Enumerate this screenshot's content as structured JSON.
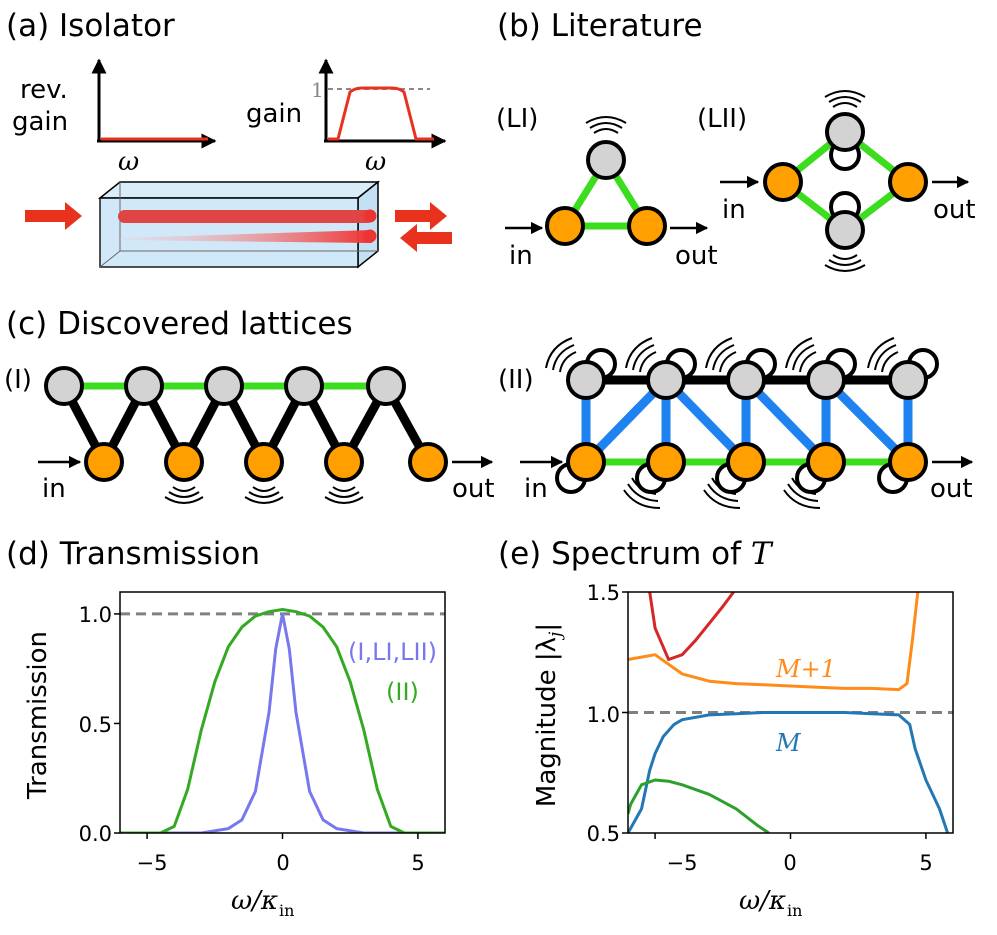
{
  "panels": {
    "a": {
      "title": "(a) Isolator",
      "rev_gain_label_1": "rev.",
      "rev_gain_label_2": "gain",
      "gain_label": "gain",
      "omega": "ω",
      "one": "1"
    },
    "b": {
      "title": "(b) Literature",
      "LI": "(LI)",
      "LII": "(LII)",
      "in": "in",
      "out": "out"
    },
    "c": {
      "title": "(c) Discovered lattices",
      "I": "(I)",
      "II": "(II)",
      "in": "in",
      "out": "out"
    },
    "d": {
      "title": "(d) Transmission",
      "ylabel": "Transmission",
      "xlabel_main": "ω/κ",
      "xlabel_sub": "in",
      "legend_1": "(I,LI,LII)",
      "legend_2": "(II)",
      "xticks": [
        "−5",
        "0",
        "5"
      ],
      "yticks": [
        "0.0",
        "0.5",
        "1.0"
      ]
    },
    "e": {
      "title_prefix": "(e) Spectrum of ",
      "title_T": "T",
      "ylabel": "Magnitude |λ",
      "ylabel_sub": "j",
      "ylabel_end": "|",
      "xlabel_main": "ω/κ",
      "xlabel_sub": "in",
      "label_M1": "M+1",
      "label_M": "M",
      "xticks": [
        "−5",
        "0",
        "5"
      ],
      "yticks": [
        "0.5",
        "1.0",
        "1.5"
      ]
    }
  },
  "colors": {
    "orange_node": "#ffa000",
    "grey_node": "#d3d3d3",
    "green_link": "#3cdc1e",
    "blue_link": "#1e82f0",
    "red": "#e8321e",
    "purple_curve": "#7777ee",
    "green_curve": "#33aa22",
    "orange_curve": "#ff8c1a",
    "blue_curve": "#2277b4",
    "red_curve": "#d62728",
    "green2_curve": "#2ca02c"
  },
  "chart_data": [
    {
      "type": "line",
      "panel": "d",
      "xlabel": "ω/κin",
      "ylabel": "Transmission",
      "xlim": [
        -6,
        6
      ],
      "ylim": [
        0,
        1.1
      ],
      "reference_line": 1.0,
      "series": [
        {
          "name": "(I,LI,LII)",
          "color": "#7777ee",
          "x": [
            -6,
            -3,
            -2,
            -1.5,
            -1,
            -0.5,
            -0.25,
            0,
            0.25,
            0.5,
            1,
            1.5,
            2,
            3,
            6
          ],
          "y": [
            0,
            0,
            0.02,
            0.06,
            0.19,
            0.55,
            0.84,
            1.0,
            0.84,
            0.55,
            0.19,
            0.06,
            0.02,
            0,
            0
          ]
        },
        {
          "name": "(II)",
          "color": "#33aa22",
          "x": [
            -6,
            -4.5,
            -4,
            -3.5,
            -3,
            -2.5,
            -2,
            -1.5,
            -1,
            -0.5,
            0,
            0.5,
            1,
            1.5,
            2,
            2.5,
            3,
            3.5,
            4,
            4.5,
            6
          ],
          "y": [
            0,
            0,
            0.03,
            0.2,
            0.47,
            0.69,
            0.85,
            0.94,
            0.99,
            1.01,
            1.02,
            1.01,
            0.99,
            0.94,
            0.85,
            0.69,
            0.47,
            0.2,
            0.03,
            0,
            0
          ]
        }
      ]
    },
    {
      "type": "line",
      "panel": "e",
      "xlabel": "ω/κin",
      "ylabel": "Magnitude |λj|",
      "xlim": [
        -6,
        6
      ],
      "ylim": [
        0.5,
        1.5
      ],
      "reference_line": 1.0,
      "series": [
        {
          "name": "M+1",
          "color": "#ff8c1a",
          "x": [
            -6,
            -5.5,
            -5,
            -4.5,
            -4,
            -3,
            -2,
            -1,
            0,
            1,
            2,
            3,
            4,
            4.3,
            4.5,
            4.7
          ],
          "y": [
            1.22,
            1.23,
            1.24,
            1.2,
            1.16,
            1.13,
            1.12,
            1.115,
            1.11,
            1.105,
            1.1,
            1.1,
            1.095,
            1.12,
            1.3,
            1.5
          ]
        },
        {
          "name": "M",
          "color": "#2277b4",
          "x": [
            -6,
            -5.5,
            -5.2,
            -5,
            -4.7,
            -4.3,
            -4,
            -3,
            -2,
            -1,
            0,
            1,
            2,
            3,
            4,
            4.4,
            4.6,
            5,
            5.5,
            5.8
          ],
          "y": [
            0.5,
            0.6,
            0.76,
            0.83,
            0.9,
            0.95,
            0.97,
            0.99,
            0.995,
            1.0,
            1.0,
            1.0,
            1.0,
            0.995,
            0.99,
            0.95,
            0.85,
            0.72,
            0.6,
            0.5
          ]
        },
        {
          "color": "#d62728",
          "x": [
            -5.2,
            -5,
            -4.5,
            -4,
            -3.5,
            -3,
            -2.5,
            -2.1
          ],
          "y": [
            1.5,
            1.35,
            1.22,
            1.24,
            1.3,
            1.37,
            1.44,
            1.5
          ]
        },
        {
          "color": "#2ca02c",
          "x": [
            -6,
            -5.9,
            -5.5,
            -5,
            -4.5,
            -4,
            -3,
            -2,
            -1.2,
            -0.8
          ],
          "y": [
            0.58,
            0.62,
            0.7,
            0.72,
            0.715,
            0.7,
            0.66,
            0.6,
            0.53,
            0.5
          ]
        }
      ]
    }
  ]
}
